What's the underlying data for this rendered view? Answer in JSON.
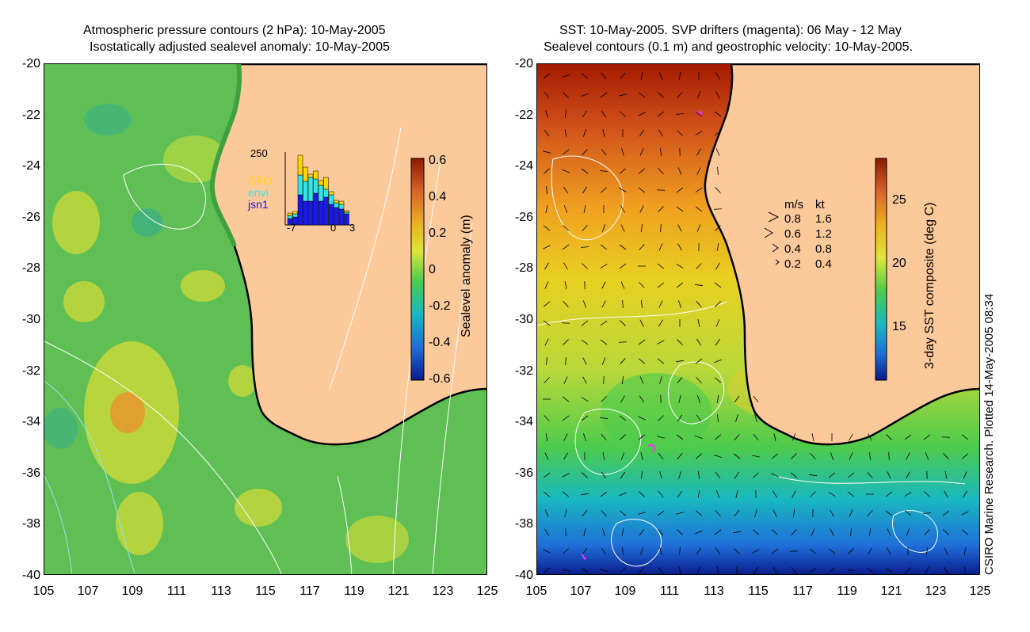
{
  "left": {
    "title_line1": "Atmospheric pressure contours (2 hPa): 10-May-2005",
    "title_line2": "Isostatically adjusted sealevel anomaly: 10-May-2005",
    "colorbar_title": "Sealevel anomaly (m)",
    "colorbar_ticks": [
      "0.6",
      "0.4",
      "0.2",
      "0",
      "-0.2",
      "-0.4",
      "-0.6"
    ],
    "colorbar_colors": [
      "#8b1a00",
      "#d9642a",
      "#e8b420",
      "#dce63a",
      "#4ccb4c",
      "#19b8c0",
      "#1f6fd8",
      "#0a1a8a"
    ],
    "inset": {
      "ymax_label": "250",
      "x_labels": [
        "-7",
        "0",
        "3"
      ],
      "satellites": [
        "GFO",
        "envi",
        "jsn1"
      ],
      "satellite_colors": [
        "#ffd400",
        "#33e6e6",
        "#1a1ae6"
      ]
    }
  },
  "right": {
    "title_line1": "SST: 10-May-2005. SVP drifters (magenta): 06 May - 12 May",
    "title_line2": "Sealevel contours (0.1 m) and geostrophic velocity: 10-May-2005.",
    "colorbar_title": "3-day SST composite (deg C)",
    "colorbar_ticks": [
      "25",
      "20",
      "15"
    ],
    "colorbar_colors": [
      "#8b1a00",
      "#d9642a",
      "#f0b020",
      "#dce63a",
      "#4ccb4c",
      "#19b8c0",
      "#1f6fd8",
      "#0a1a8a"
    ],
    "velocity_legend": {
      "header_ms": "m/s",
      "header_kt": "kt",
      "rows": [
        {
          "ms": "0.8",
          "kt": "1.6"
        },
        {
          "ms": "0.6",
          "kt": "1.2"
        },
        {
          "ms": "0.4",
          "kt": "0.8"
        },
        {
          "ms": "0.2",
          "kt": "0.4"
        }
      ]
    }
  },
  "y_ticks": [
    "-20",
    "-22",
    "-24",
    "-26",
    "-28",
    "-30",
    "-32",
    "-34",
    "-36",
    "-38",
    "-40"
  ],
  "x_ticks": [
    "105",
    "107",
    "109",
    "111",
    "113",
    "115",
    "117",
    "119",
    "121",
    "123",
    "125"
  ],
  "credit": "CSIRO Marine Research. Plotted 14-May-2005 08:34",
  "colors": {
    "land": "#fcc99b",
    "coast": "#000000",
    "contour": "#ffffff"
  }
}
